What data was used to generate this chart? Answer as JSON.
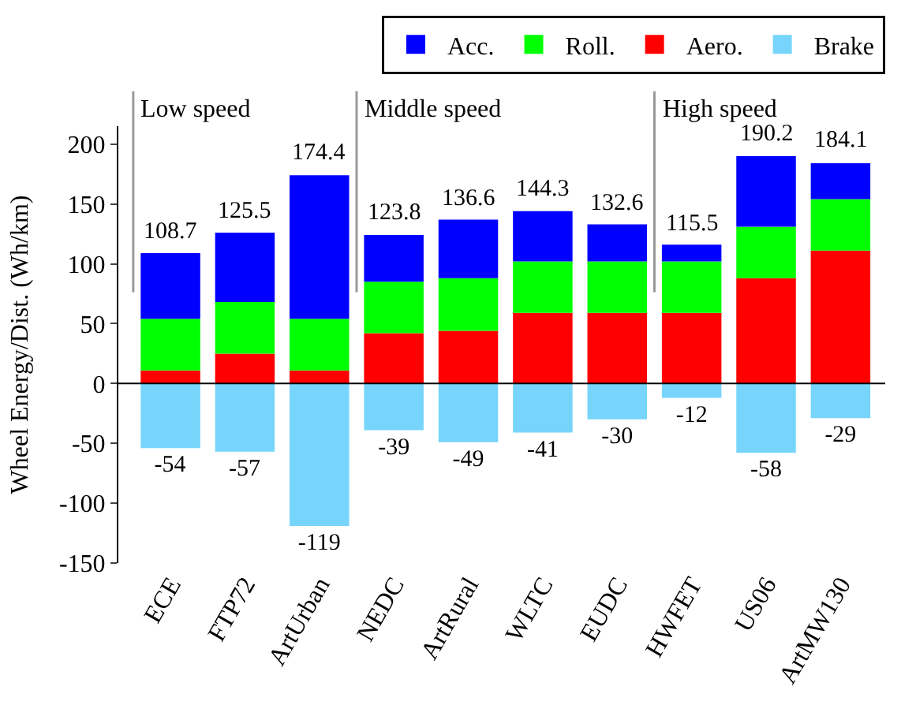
{
  "chart_data": {
    "type": "bar",
    "stacked": true,
    "ylabel": "Wheel Energy/Dist. (Wh/km)",
    "categories": [
      "ECE",
      "FTP72",
      "ArtUrban",
      "NEDC",
      "ArtRural",
      "WLTC",
      "EUDC",
      "HWFET",
      "US06",
      "ArtMW130"
    ],
    "series": [
      {
        "name": "Aero.",
        "color": "#ff0000",
        "values": [
          11,
          25,
          11,
          42,
          44,
          59,
          59,
          59,
          88,
          111
        ]
      },
      {
        "name": "Roll.",
        "color": "#00ff00",
        "values": [
          43,
          43,
          43,
          43,
          44,
          43,
          43,
          43,
          43,
          43
        ]
      },
      {
        "name": "Acc.",
        "color": "#0000ff",
        "values": [
          55,
          58,
          120,
          39,
          49,
          42,
          31,
          14,
          59,
          30
        ]
      },
      {
        "name": "Brake",
        "color": "#77d5fb",
        "values": [
          -54,
          -57,
          -119,
          -39,
          -49,
          -41,
          -30,
          -12,
          -58,
          -29
        ],
        "value_labels": [
          "-54",
          "-57",
          "-119",
          "-39",
          "-49",
          "-41",
          "-30",
          "-12",
          "-58",
          "-29"
        ]
      }
    ],
    "annotations": [
      {
        "text": "108.7",
        "x": "ECE",
        "y": 108.7
      },
      {
        "text": "125.5",
        "x": "FTP72",
        "y": 125.5
      },
      {
        "text": "174.4",
        "x": "ArtUrban",
        "y": 174.4
      },
      {
        "text": "123.8",
        "x": "NEDC",
        "y": 123.8
      },
      {
        "text": "136.6",
        "x": "ArtRural",
        "y": 136.6
      },
      {
        "text": "144.3",
        "x": "WLTC",
        "y": 144.3
      },
      {
        "text": "132.6",
        "x": "EUDC",
        "y": 132.6
      },
      {
        "text": "115.5",
        "x": "HWFET",
        "y": 115.5
      },
      {
        "text": "190.2",
        "x": "US06",
        "y": 190.2
      },
      {
        "text": "184.1",
        "x": "ArtMW130",
        "y": 184.1
      },
      "Low speed",
      "Middle speed",
      "High speed"
    ],
    "ref_lines": [
      {
        "axis": "y",
        "value": 0,
        "color": "#000000"
      }
    ],
    "ylim": [
      -150,
      215
    ],
    "yticks": [
      -150,
      -100,
      -50,
      0,
      50,
      100,
      150,
      200
    ],
    "legend": "top"
  }
}
